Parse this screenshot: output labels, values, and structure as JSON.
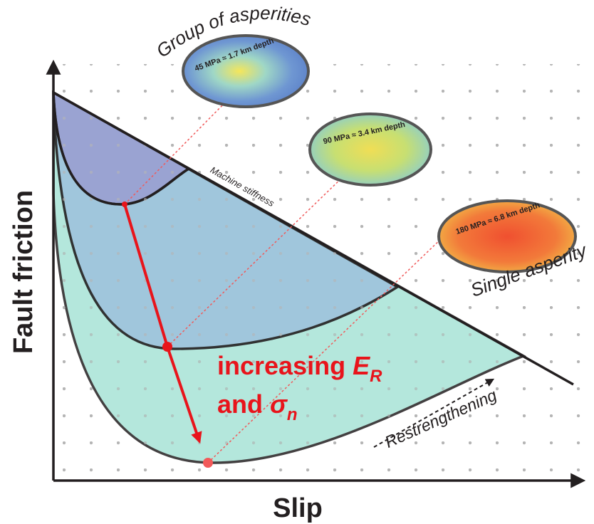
{
  "axes": {
    "y_label": "Fault friction",
    "x_label": "Slip"
  },
  "stiffness_label": "Machine stiffness",
  "samples": [
    {
      "title": "Group of asperities",
      "label": "45 MPa ≈ 1.7 km depth"
    },
    {
      "label": "90 MPa ≈ 3.4 km depth"
    },
    {
      "title": "Single asperity",
      "label": "180 MPa ≈ 6.8 km depth"
    }
  ],
  "main_label": {
    "line1": "increasing",
    "symbol1": "E",
    "sub1": "R",
    "line2": "and",
    "symbol2": "σ",
    "sub2": "n"
  },
  "restrengthening": "Restrengthening"
}
